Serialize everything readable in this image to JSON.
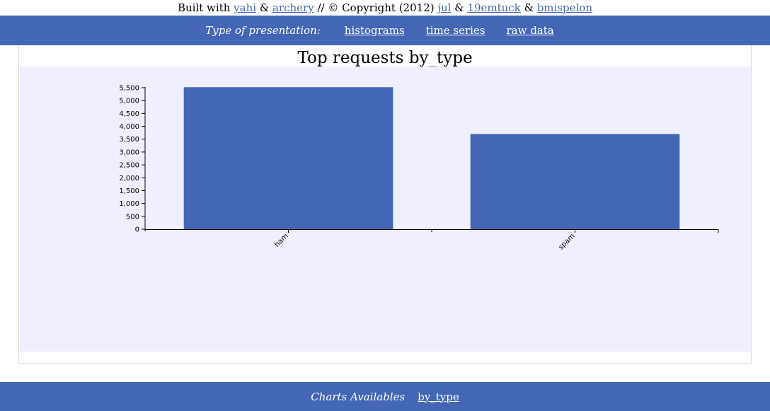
{
  "credits": {
    "prefix": "Built with",
    "link1": "yahi",
    "amp1": "&",
    "link2": "archery",
    "copyright": "// © Copyright (2012)",
    "link3": "jul",
    "amp2": "&",
    "link4": "19emtuck",
    "amp3": "&",
    "link5": "bmispelon"
  },
  "nav": {
    "label": "Type of presentation:",
    "items": [
      "histograms",
      "time series",
      "raw data"
    ]
  },
  "footer": {
    "label": "Charts Availables",
    "link": "by_type"
  },
  "colors": {
    "bar": "#4367b5",
    "nav": "#4367b5",
    "plot_bg": "#efeffd"
  },
  "chart_data": {
    "type": "bar",
    "title": "Top requests by_type",
    "categories": [
      "ham",
      "spam"
    ],
    "values": [
      5520,
      3700
    ],
    "ylim": [
      0,
      5500
    ],
    "yticks": [
      0,
      500,
      1000,
      1500,
      2000,
      2500,
      3000,
      3500,
      4000,
      4500,
      5000,
      5500
    ],
    "ytick_labels": [
      "0",
      "500",
      "1,000",
      "1,500",
      "2,000",
      "2,500",
      "3,000",
      "3,500",
      "4,000",
      "4,500",
      "5,000",
      "5,500"
    ],
    "xlabel": "",
    "ylabel": "",
    "grid": false,
    "legend": false
  }
}
